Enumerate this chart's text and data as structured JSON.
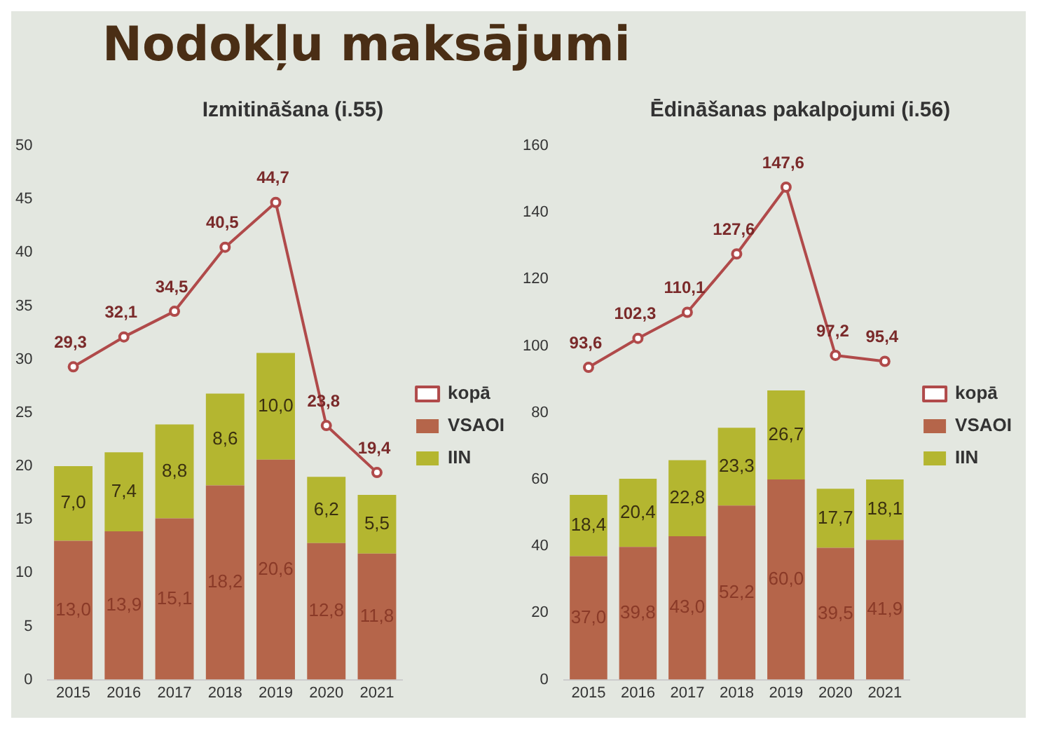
{
  "chart_data": [
    {
      "type": "bar",
      "title": "Nodokļu maksājumi",
      "subtitle": "Izmitināšana (i.55)",
      "categories": [
        "2015",
        "2016",
        "2017",
        "2018",
        "2019",
        "2020",
        "2021"
      ],
      "stacked": true,
      "ylim": [
        0,
        50
      ],
      "yticks": [
        0,
        5,
        10,
        15,
        20,
        25,
        30,
        35,
        40,
        45,
        50
      ],
      "legend": "right",
      "grid": false,
      "series": [
        {
          "name": "VSAOI",
          "color": "#b5654a",
          "values": [
            13.0,
            13.9,
            15.1,
            18.2,
            20.6,
            12.8,
            11.8
          ],
          "value_labels": [
            "13,0",
            "13,9",
            "15,1",
            "18,2",
            "20,6",
            "12,8",
            "11,8"
          ]
        },
        {
          "name": "IIN",
          "color": "#b4b630",
          "values": [
            7.0,
            7.4,
            8.8,
            8.6,
            10.0,
            6.2,
            5.5
          ],
          "value_labels": [
            "7,0",
            "7,4",
            "8,8",
            "8,6",
            "10,0",
            "6,2",
            "5,5"
          ]
        },
        {
          "name": "kopā",
          "type": "line",
          "color": "#b04a4a",
          "marker": "circle",
          "values": [
            29.3,
            32.1,
            34.5,
            40.5,
            44.7,
            23.8,
            19.4
          ],
          "value_labels": [
            "29,3",
            "32,1",
            "34,5",
            "40,5",
            "44,7",
            "23,8",
            "19,4"
          ]
        }
      ]
    },
    {
      "type": "bar",
      "subtitle": "Ēdināšanas pakalpojumi (i.56)",
      "categories": [
        "2015",
        "2016",
        "2017",
        "2018",
        "2019",
        "2020",
        "2021"
      ],
      "stacked": true,
      "ylim": [
        0,
        160
      ],
      "yticks": [
        0,
        20,
        40,
        60,
        80,
        100,
        120,
        140,
        160
      ],
      "legend": "right",
      "grid": false,
      "series": [
        {
          "name": "VSAOI",
          "color": "#b5654a",
          "values": [
            37.0,
            39.8,
            43.0,
            52.2,
            60.0,
            39.5,
            41.9
          ],
          "value_labels": [
            "37,0",
            "39,8",
            "43,0",
            "52,2",
            "60,0",
            "39,5",
            "41,9"
          ]
        },
        {
          "name": "IIN",
          "color": "#b4b630",
          "values": [
            18.4,
            20.4,
            22.8,
            23.3,
            26.7,
            17.7,
            18.1
          ],
          "value_labels": [
            "18,4",
            "20,4",
            "22,8",
            "23,3",
            "26,7",
            "17,7",
            "18,1"
          ]
        },
        {
          "name": "kopā",
          "type": "line",
          "color": "#b04a4a",
          "marker": "circle",
          "values": [
            93.6,
            102.3,
            110.1,
            127.6,
            147.6,
            97.2,
            95.4
          ],
          "value_labels": [
            "93,6",
            "102,3",
            "110,1",
            "127,6",
            "147,6",
            "97,2",
            "95,4"
          ]
        }
      ]
    }
  ]
}
